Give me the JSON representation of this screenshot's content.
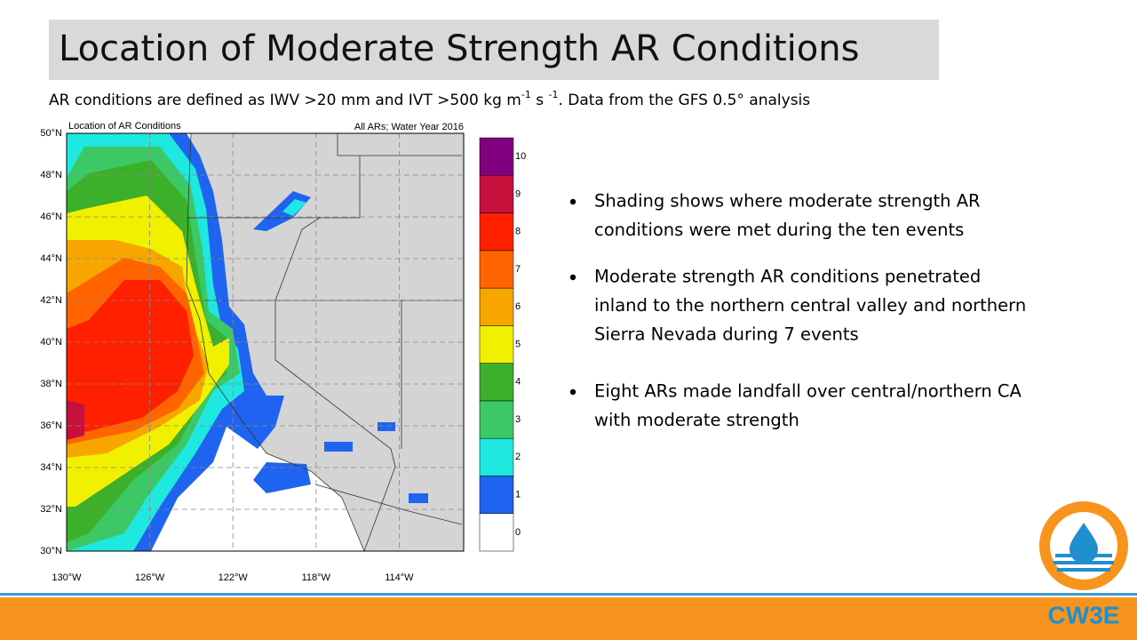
{
  "header": {
    "title": "Location of Moderate Strength AR Conditions"
  },
  "subtitle": {
    "parts": [
      "AR conditions are defined as IWV >20 mm and IVT >500 kg m",
      "-1",
      " s ",
      "-1",
      ". Data from the GFS 0.5° analysis"
    ]
  },
  "map": {
    "title": "Location of AR Conditions",
    "caption": "All ARs; Water Year 2016",
    "lat_labels": [
      "50°N",
      "48°N",
      "46°N",
      "44°N",
      "42°N",
      "40°N",
      "38°N",
      "36°N",
      "34°N",
      "32°N",
      "30°N"
    ],
    "lon_labels": [
      "130°W",
      "126°W",
      "122°W",
      "118°W",
      "114°W"
    ],
    "colorbar": {
      "labels": [
        "0",
        "1",
        "2",
        "3",
        "4",
        "5",
        "6",
        "7",
        "8",
        "9",
        "10"
      ],
      "colors": [
        "#ffffff",
        "#1e64f0",
        "#1ee8e0",
        "#3cc864",
        "#3cb02a",
        "#f0f000",
        "#f7a600",
        "#ff6400",
        "#ff2000",
        "#c8103c",
        "#800080"
      ]
    }
  },
  "bullets": [
    [
      "Shading shows where moderate strength AR",
      "conditions were met during the ten events"
    ],
    [
      "Moderate strength AR conditions penetrated",
      "inland to the northern central valley and northern",
      "Sierra Nevada during 7 events"
    ],
    [
      "Eight ARs made landfall over central/northern CA",
      "with moderate strength"
    ]
  ],
  "logo": {
    "text": "CW3E"
  }
}
